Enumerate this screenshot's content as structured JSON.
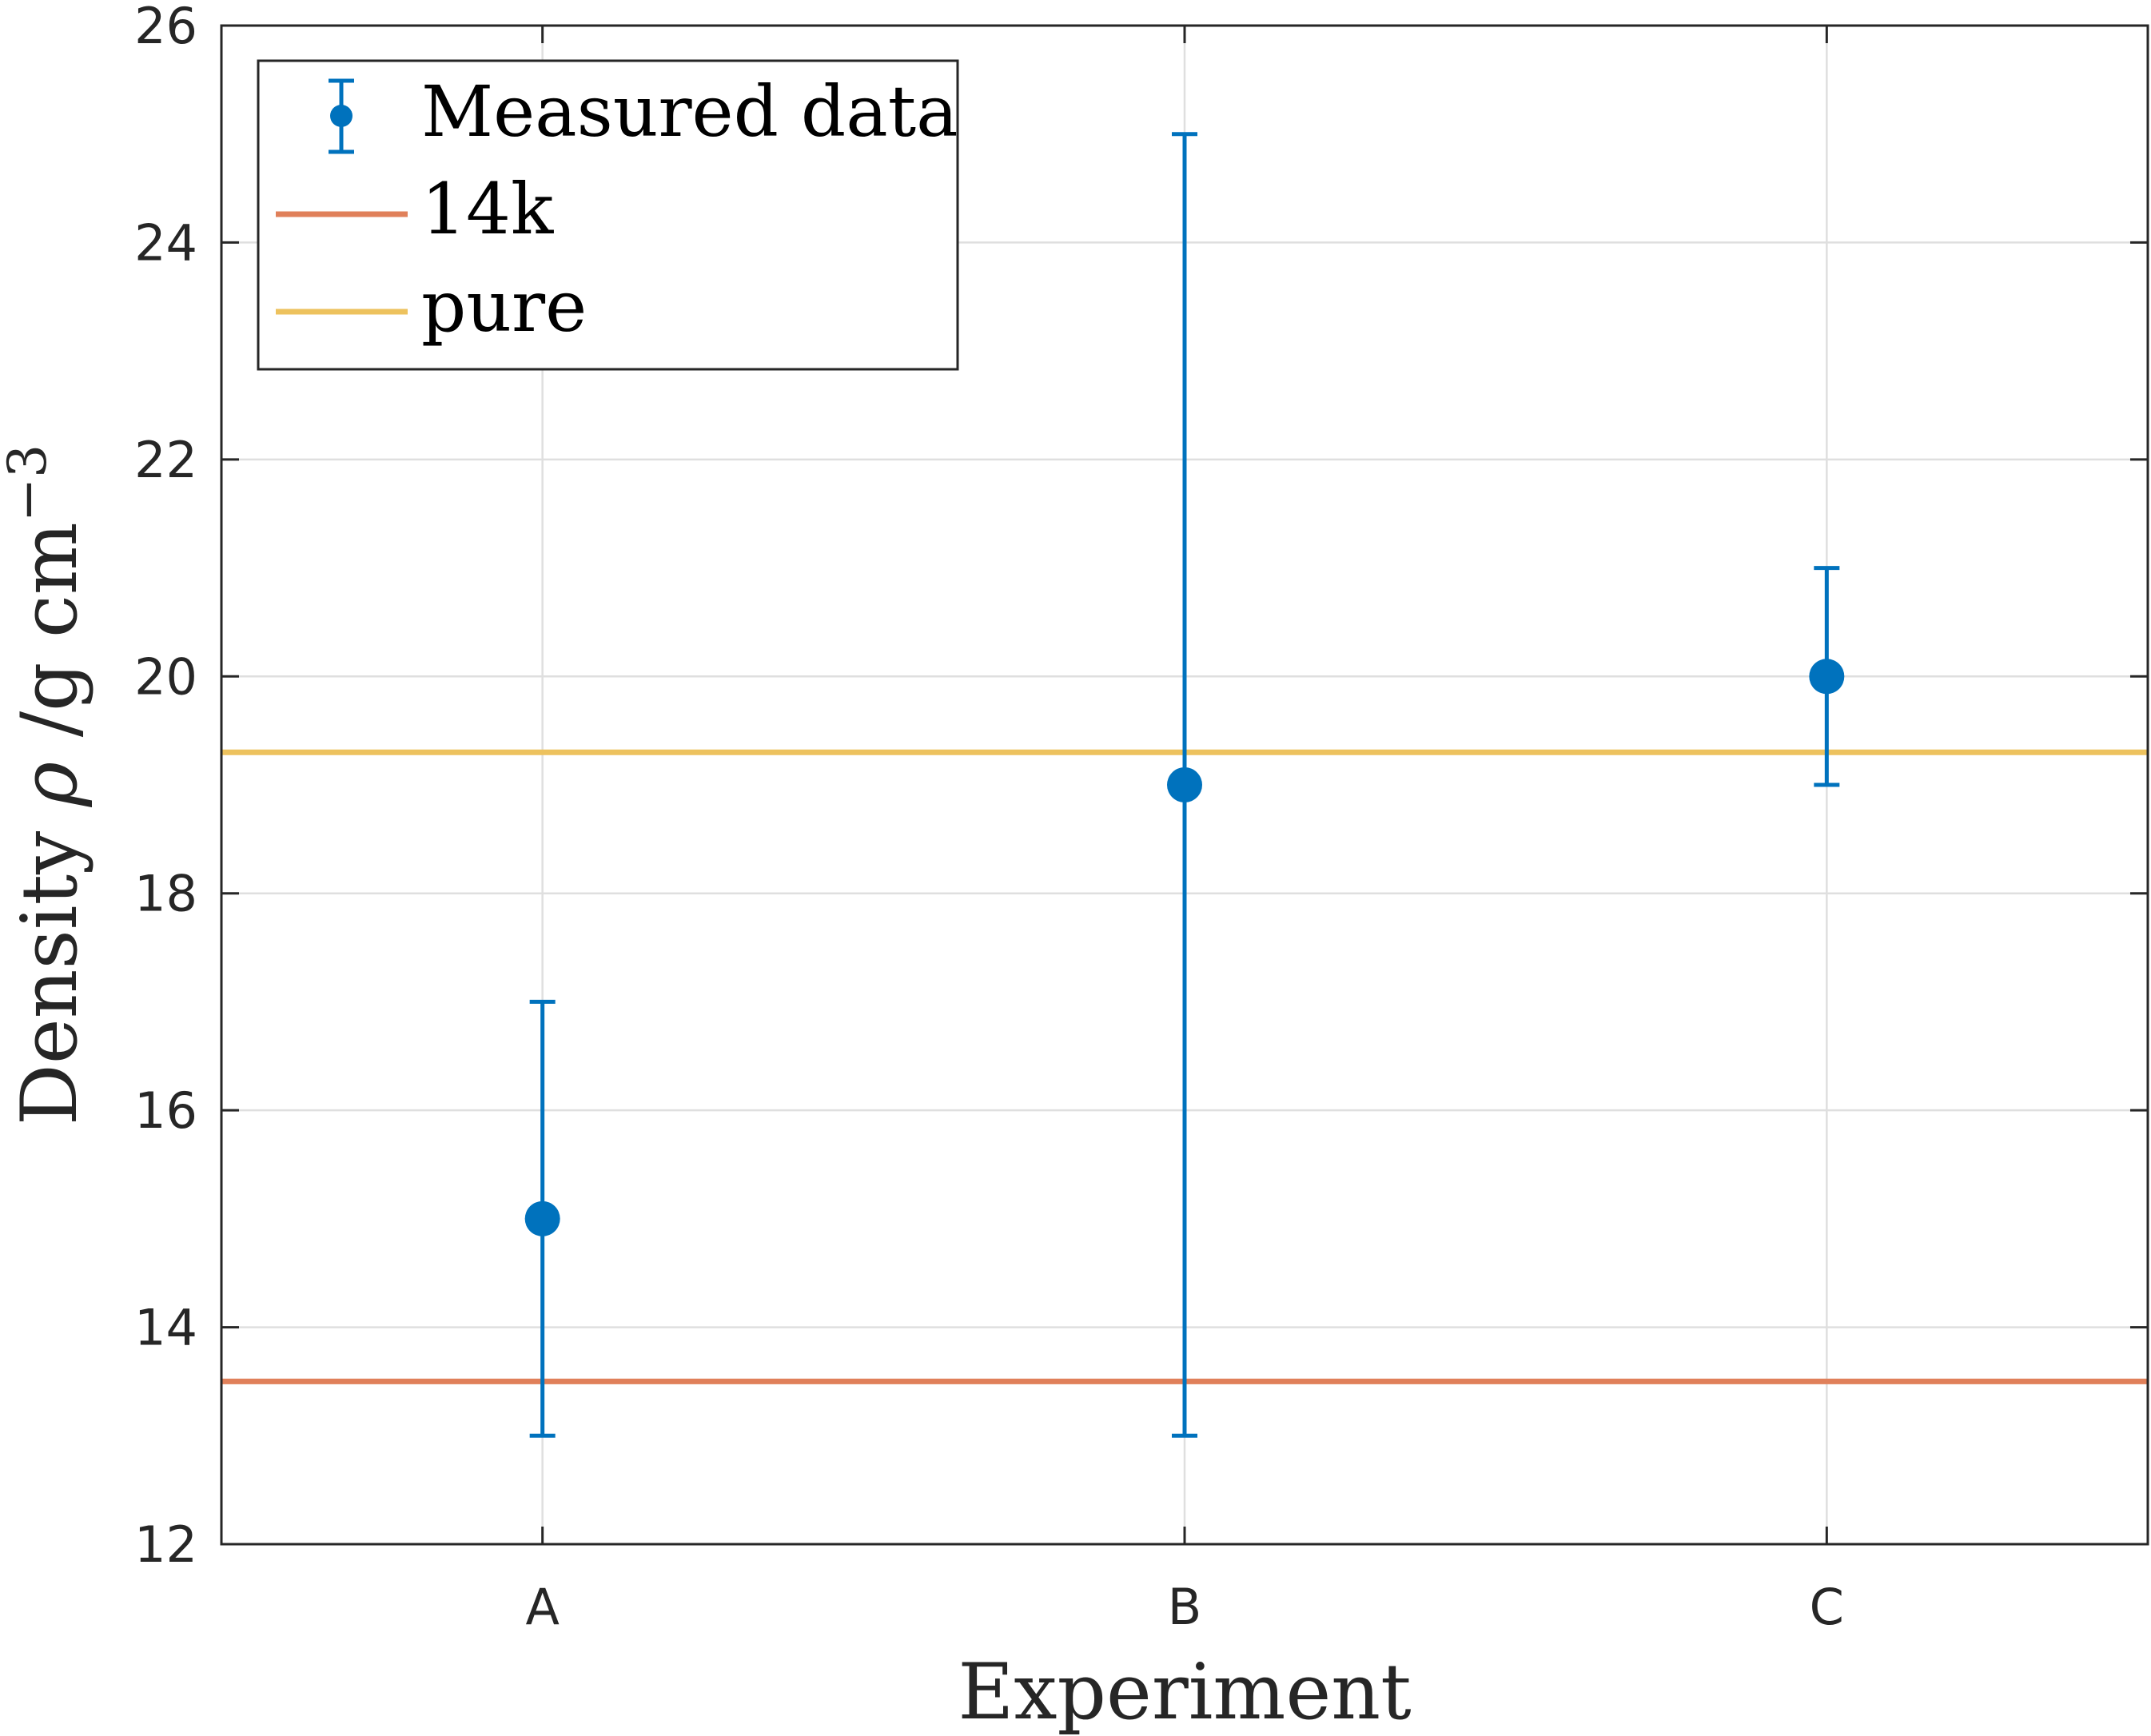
{
  "chart_data": {
    "type": "scatter",
    "title": "",
    "xlabel": "Experiment",
    "ylabel": {
      "prefix": "Density ",
      "symbol": "ρ",
      "unit": " /g cm",
      "exponent": "−3"
    },
    "categories": [
      "A",
      "B",
      "C"
    ],
    "ylim": [
      12,
      26
    ],
    "yticks": [
      "12",
      "14",
      "16",
      "18",
      "20",
      "22",
      "24",
      "26"
    ],
    "grid": true,
    "legend_position": "top-left",
    "series": [
      {
        "name": "Measured data",
        "kind": "errorbar",
        "color": "#0072bd",
        "values": [
          15,
          19,
          20
        ],
        "lower": [
          13,
          13,
          19
        ],
        "upper": [
          17,
          25,
          21
        ]
      }
    ],
    "reference_lines": [
      {
        "name": "14k",
        "value": 13.5,
        "color": "#e0805a"
      },
      {
        "name": "pure",
        "value": 19.3,
        "color": "#edc25e"
      }
    ]
  }
}
